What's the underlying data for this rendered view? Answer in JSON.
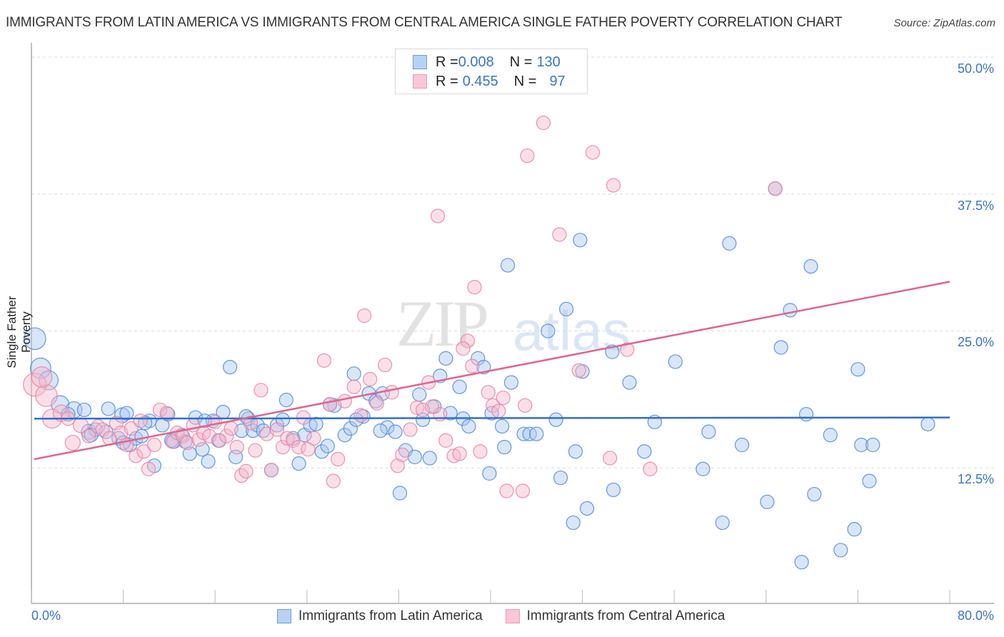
{
  "header": {
    "title": "IMMIGRANTS FROM LATIN AMERICA VS IMMIGRANTS FROM CENTRAL AMERICA SINGLE FATHER POVERTY CORRELATION CHART",
    "source": "Source: ZipAtlas.com"
  },
  "watermark": {
    "zip": "ZIP",
    "atlas": "atlas"
  },
  "legend": {
    "rows": [
      {
        "r_label": "R = ",
        "r_value": "0.008",
        "n_label": "N = ",
        "n_value": "130"
      },
      {
        "r_label": "R = ",
        "r_value": "0.455",
        "n_label": "N = ",
        "n_value": "97"
      }
    ]
  },
  "colors": {
    "blue_fill": "#a9c8f0",
    "blue_stroke": "#4a86d8",
    "blue_line": "#2e6fcc",
    "pink_fill": "#f7b9cc",
    "pink_stroke": "#e87fa0",
    "pink_line": "#e0648c",
    "tick_text": "#3b74c9"
  },
  "chart_data": {
    "type": "scatter",
    "title": "IMMIGRANTS FROM LATIN AMERICA VS IMMIGRANTS FROM CENTRAL AMERICA SINGLE FATHER POVERTY CORRELATION CHART",
    "xlabel": "",
    "ylabel": "Single Father Poverty",
    "xlim": [
      0,
      80
    ],
    "ylim": [
      0,
      52
    ],
    "x_ticks": [
      "0.0%",
      "80.0%"
    ],
    "y_ticks": [
      {
        "value": 50,
        "label": "50.0%"
      },
      {
        "value": 37.5,
        "label": "37.5%"
      },
      {
        "value": 25,
        "label": "25.0%"
      },
      {
        "value": 12.5,
        "label": "12.5%"
      }
    ],
    "grid": true,
    "legend_position": "top-center",
    "series": [
      {
        "name": "Immigrants from Latin America",
        "color": "blue",
        "R": 0.008,
        "N": 130,
        "trend": {
          "x": [
            0,
            80
          ],
          "y": [
            17.0,
            17.1
          ]
        },
        "points": [
          [
            0.3,
            24.3,
            1.6
          ],
          [
            0.8,
            21.6,
            1.5
          ],
          [
            1.5,
            20.5,
            1.4
          ],
          [
            2.5,
            18.3,
            1.3
          ],
          [
            3.7,
            17.8,
            1.2
          ],
          [
            3.2,
            17.4,
            1.0
          ],
          [
            5.0,
            15.8,
            1.1
          ],
          [
            5.6,
            16.0,
            1.0
          ],
          [
            6.5,
            15.8,
            1.0
          ],
          [
            7.6,
            15.2,
            1.0
          ],
          [
            6.7,
            17.9,
            1.0
          ],
          [
            7.9,
            17.3,
            1.1
          ],
          [
            8.3,
            17.5,
            1.0
          ],
          [
            8.6,
            14.6,
            1.0
          ],
          [
            9.1,
            15.2,
            1.0
          ],
          [
            9.6,
            15.4,
            1.0
          ],
          [
            10.3,
            16.8,
            1.0
          ],
          [
            10.7,
            12.7,
            1.0
          ],
          [
            11.4,
            16.4,
            1.0
          ],
          [
            11.9,
            17.4,
            1.0
          ],
          [
            12.4,
            14.9,
            1.0
          ],
          [
            13.1,
            15.5,
            1.0
          ],
          [
            13.4,
            14.9,
            1.0
          ],
          [
            13.8,
            13.8,
            1.0
          ],
          [
            14.3,
            17.1,
            1.0
          ],
          [
            14.9,
            14.2,
            1.0
          ],
          [
            15.4,
            13.1,
            1.0
          ],
          [
            15.8,
            16.8,
            1.0
          ],
          [
            16.3,
            15.0,
            1.0
          ],
          [
            16.7,
            17.6,
            1.0
          ],
          [
            17.3,
            21.7,
            1.0
          ],
          [
            17.8,
            13.5,
            1.0
          ],
          [
            18.3,
            15.9,
            1.0
          ],
          [
            18.9,
            17.0,
            1.0
          ],
          [
            19.3,
            15.9,
            1.0
          ],
          [
            19.7,
            16.4,
            1.0
          ],
          [
            20.2,
            15.9,
            1.0
          ],
          [
            20.9,
            12.3,
            1.0
          ],
          [
            21.4,
            16.4,
            1.0
          ],
          [
            21.9,
            16.9,
            1.0
          ],
          [
            22.2,
            18.7,
            1.0
          ],
          [
            22.8,
            15.2,
            1.0
          ],
          [
            23.3,
            12.9,
            1.0
          ],
          [
            23.8,
            15.5,
            1.0
          ],
          [
            24.3,
            16.4,
            1.0
          ],
          [
            24.8,
            16.5,
            1.0
          ],
          [
            25.3,
            14.0,
            1.0
          ],
          [
            25.8,
            14.5,
            1.0
          ],
          [
            26.4,
            18.2,
            1.0
          ],
          [
            27.3,
            15.5,
            1.0
          ],
          [
            27.8,
            16.1,
            1.0
          ],
          [
            28.1,
            21.1,
            1.0
          ],
          [
            28.9,
            17.2,
            1.0
          ],
          [
            29.4,
            19.3,
            1.0
          ],
          [
            30.0,
            18.6,
            1.0
          ],
          [
            30.6,
            19.3,
            1.0
          ],
          [
            31.0,
            16.2,
            1.0
          ],
          [
            31.7,
            15.8,
            1.0
          ],
          [
            32.1,
            10.2,
            1.0
          ],
          [
            32.6,
            14.1,
            1.0
          ],
          [
            33.4,
            13.5,
            1.0
          ],
          [
            33.8,
            19.2,
            1.0
          ],
          [
            34.1,
            16.9,
            1.0
          ],
          [
            34.7,
            13.4,
            1.0
          ],
          [
            35.1,
            18.1,
            1.0
          ],
          [
            35.6,
            20.9,
            1.0
          ],
          [
            36.1,
            22.5,
            1.0
          ],
          [
            36.5,
            17.5,
            1.0
          ],
          [
            37.3,
            19.9,
            1.0
          ],
          [
            37.6,
            17.0,
            1.0
          ],
          [
            38.1,
            16.3,
            1.0
          ],
          [
            38.9,
            22.5,
            1.0
          ],
          [
            39.4,
            21.7,
            1.0
          ],
          [
            39.9,
            12.0,
            1.0
          ],
          [
            40.1,
            17.5,
            1.0
          ],
          [
            41.0,
            16.3,
            1.0
          ],
          [
            41.2,
            14.4,
            1.0
          ],
          [
            41.8,
            20.3,
            1.0
          ],
          [
            41.5,
            31.0,
            1.0
          ],
          [
            42.9,
            15.6,
            1.0
          ],
          [
            43.4,
            15.6,
            1.0
          ],
          [
            44.0,
            15.6,
            1.0
          ],
          [
            45.0,
            25.0,
            1.0
          ],
          [
            45.7,
            16.9,
            1.0
          ],
          [
            46.1,
            11.6,
            1.0
          ],
          [
            46.6,
            27.0,
            1.0
          ],
          [
            48.4,
            8.8,
            1.0
          ],
          [
            48.0,
            21.3,
            1.0
          ],
          [
            47.4,
            14.0,
            1.0
          ],
          [
            47.8,
            33.3,
            1.0
          ],
          [
            47.2,
            7.5,
            1.0
          ],
          [
            50.7,
            10.5,
            1.0
          ],
          [
            50.6,
            23.1,
            1.0
          ],
          [
            52.1,
            20.3,
            1.0
          ],
          [
            54.3,
            16.7,
            1.0
          ],
          [
            53.4,
            14.0,
            1.0
          ],
          [
            56.1,
            22.2,
            1.0
          ],
          [
            58.5,
            12.4,
            1.0
          ],
          [
            59.0,
            15.8,
            1.0
          ],
          [
            60.2,
            7.5,
            1.0
          ],
          [
            60.8,
            33.0,
            1.0
          ],
          [
            61.9,
            14.6,
            1.0
          ],
          [
            64.1,
            9.4,
            1.0
          ],
          [
            64.8,
            38.0,
            1.0
          ],
          [
            65.3,
            23.5,
            1.0
          ],
          [
            66.1,
            26.9,
            1.0
          ],
          [
            67.5,
            17.4,
            1.0
          ],
          [
            67.1,
            3.9,
            1.0
          ],
          [
            67.9,
            30.9,
            1.0
          ],
          [
            68.2,
            10.1,
            1.0
          ],
          [
            69.6,
            15.5,
            1.0
          ],
          [
            70.5,
            5.0,
            1.0
          ],
          [
            71.7,
            6.9,
            1.0
          ],
          [
            72.0,
            21.5,
            1.0
          ],
          [
            72.3,
            14.6,
            1.0
          ],
          [
            73.0,
            11.3,
            1.0
          ],
          [
            73.3,
            14.6,
            1.0
          ],
          [
            78.1,
            16.5,
            1.0
          ],
          [
            26.0,
            18.3,
            1.0
          ],
          [
            28.3,
            16.9,
            1.0
          ],
          [
            30.4,
            15.9,
            1.0
          ],
          [
            18.7,
            17.2,
            1.0
          ],
          [
            15.1,
            16.8,
            1.0
          ],
          [
            12.2,
            15.0,
            1.0
          ],
          [
            9.9,
            16.6,
            1.0
          ],
          [
            4.6,
            17.8,
            1.0
          ],
          [
            5.2,
            15.5,
            1.0
          ],
          [
            8.0,
            14.8,
            1.0
          ]
        ]
      },
      {
        "name": "Immigrants from Central America",
        "color": "pink",
        "R": 0.455,
        "N": 97,
        "trend": {
          "x": [
            0,
            80
          ],
          "y": [
            13.3,
            29.5
          ]
        },
        "points": [
          [
            0.3,
            20.1,
            1.7
          ],
          [
            1.3,
            19.1,
            1.6
          ],
          [
            1.8,
            17.0,
            1.4
          ],
          [
            2.6,
            17.5,
            1.2
          ],
          [
            3.2,
            17.0,
            1.0
          ],
          [
            3.6,
            14.8,
            1.1
          ],
          [
            4.3,
            16.4,
            1.1
          ],
          [
            5.0,
            15.4,
            1.0
          ],
          [
            5.8,
            16.3,
            1.0
          ],
          [
            6.2,
            16.0,
            1.0
          ],
          [
            6.8,
            15.2,
            1.0
          ],
          [
            7.4,
            16.6,
            1.0
          ],
          [
            7.8,
            15.7,
            1.0
          ],
          [
            8.3,
            14.6,
            1.0
          ],
          [
            8.7,
            16.1,
            1.0
          ],
          [
            9.1,
            13.6,
            1.0
          ],
          [
            9.5,
            16.8,
            1.0
          ],
          [
            9.8,
            14.0,
            1.0
          ],
          [
            10.2,
            12.4,
            1.0
          ],
          [
            10.7,
            14.6,
            1.0
          ],
          [
            11.2,
            17.8,
            1.0
          ],
          [
            11.8,
            17.5,
            1.0
          ],
          [
            12.3,
            14.9,
            1.0
          ],
          [
            12.7,
            15.7,
            1.0
          ],
          [
            13.2,
            15.4,
            1.0
          ],
          [
            13.6,
            14.8,
            1.0
          ],
          [
            14.1,
            16.4,
            1.0
          ],
          [
            14.6,
            15.1,
            1.0
          ],
          [
            15.0,
            15.7,
            1.0
          ],
          [
            15.5,
            15.4,
            1.0
          ],
          [
            16.0,
            16.7,
            1.0
          ],
          [
            16.4,
            15.0,
            1.0
          ],
          [
            17.0,
            15.4,
            1.0
          ],
          [
            17.4,
            16.1,
            1.0
          ],
          [
            17.9,
            14.4,
            1.0
          ],
          [
            18.3,
            11.8,
            1.0
          ],
          [
            18.7,
            12.2,
            1.0
          ],
          [
            19.1,
            16.6,
            1.0
          ],
          [
            19.5,
            14.1,
            1.0
          ],
          [
            20.0,
            19.6,
            1.0
          ],
          [
            20.5,
            15.6,
            1.0
          ],
          [
            20.9,
            12.3,
            1.0
          ],
          [
            21.4,
            16.0,
            1.0
          ],
          [
            21.9,
            14.4,
            1.0
          ],
          [
            22.3,
            15.2,
            1.0
          ],
          [
            22.8,
            15.0,
            1.0
          ],
          [
            23.3,
            14.4,
            1.0
          ],
          [
            23.7,
            17.1,
            1.0
          ],
          [
            24.1,
            14.2,
            1.0
          ],
          [
            24.6,
            15.2,
            1.0
          ],
          [
            25.5,
            22.3,
            1.0
          ],
          [
            26.0,
            18.3,
            1.0
          ],
          [
            26.7,
            13.3,
            1.0
          ],
          [
            26.3,
            11.3,
            1.0
          ],
          [
            27.3,
            18.6,
            1.0
          ],
          [
            28.1,
            19.9,
            1.0
          ],
          [
            28.7,
            17.3,
            1.0
          ],
          [
            29.0,
            26.4,
            1.0
          ],
          [
            29.5,
            20.6,
            1.0
          ],
          [
            30.1,
            18.4,
            1.0
          ],
          [
            30.8,
            21.9,
            1.0
          ],
          [
            31.4,
            19.4,
            1.0
          ],
          [
            31.9,
            12.7,
            1.0
          ],
          [
            32.3,
            13.7,
            1.0
          ],
          [
            33.0,
            16.0,
            1.0
          ],
          [
            33.6,
            18.0,
            1.0
          ],
          [
            34.1,
            17.8,
            1.0
          ],
          [
            34.6,
            20.3,
            1.0
          ],
          [
            35.6,
            17.4,
            1.0
          ],
          [
            35.4,
            35.5,
            1.0
          ],
          [
            36.1,
            15.0,
            1.0
          ],
          [
            36.8,
            13.6,
            1.0
          ],
          [
            37.3,
            13.8,
            1.0
          ],
          [
            38.0,
            24.1,
            1.0
          ],
          [
            38.6,
            29.0,
            1.0
          ],
          [
            39.1,
            14.0,
            1.0
          ],
          [
            40.2,
            18.2,
            1.0
          ],
          [
            40.7,
            17.7,
            1.0
          ],
          [
            41.4,
            10.4,
            1.0
          ],
          [
            42.8,
            10.4,
            1.0
          ],
          [
            43.0,
            18.2,
            1.0
          ],
          [
            43.2,
            41.0,
            1.0
          ],
          [
            44.6,
            44.0,
            1.0
          ],
          [
            46.0,
            33.8,
            1.0
          ],
          [
            47.7,
            21.4,
            1.0
          ],
          [
            48.9,
            41.3,
            1.0
          ],
          [
            50.7,
            38.3,
            1.0
          ],
          [
            51.9,
            23.3,
            1.0
          ],
          [
            53.9,
            12.4,
            1.0
          ],
          [
            38.4,
            21.8,
            1.0
          ],
          [
            37.6,
            23.4,
            1.0
          ],
          [
            39.8,
            19.4,
            1.0
          ],
          [
            41.1,
            18.9,
            1.0
          ],
          [
            50.4,
            13.4,
            1.0
          ],
          [
            34.9,
            18.1,
            1.0
          ],
          [
            0.9,
            20.8,
            1.5
          ],
          [
            64.8,
            38.0,
            1.0
          ]
        ]
      }
    ]
  },
  "bottom_legend": [
    {
      "label": "Immigrants from Latin America"
    },
    {
      "label": "Immigrants from Central America"
    }
  ]
}
